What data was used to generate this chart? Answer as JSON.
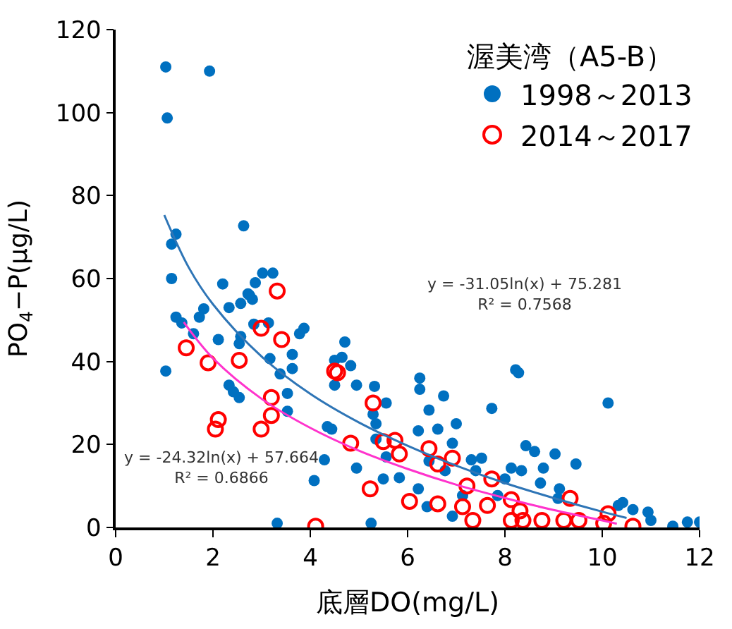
{
  "chart_data": {
    "type": "scatter",
    "legend_title": "渥美湾（A5-B）",
    "xlabel": "底層DO(mg/L)",
    "ylabel": "PO$_{4}$−P(μg/L)",
    "xlim": [
      0,
      12
    ],
    "ylim": [
      0,
      120
    ],
    "xticks": [
      0,
      2,
      4,
      6,
      8,
      10,
      12
    ],
    "yticks": [
      0,
      20,
      40,
      60,
      80,
      100,
      120
    ],
    "legend": "top right",
    "marker": "circle",
    "series": [
      {
        "name": "1998～2013",
        "color": "#0070c0",
        "x": [
          1.03,
          1.93,
          1.06,
          2.63,
          1.24,
          1.15,
          1.15,
          2.2,
          2.87,
          3.02,
          3.23,
          2.72,
          2.75,
          2.81,
          2.57,
          2.33,
          1.81,
          1.72,
          1.24,
          1.36,
          1.6,
          2.11,
          2.57,
          2.54,
          2.84,
          3.14,
          3.78,
          3.87,
          3.63,
          3.17,
          3.63,
          3.38,
          1.03,
          2.33,
          2.42,
          2.54,
          3.53,
          3.53,
          4.35,
          4.44,
          4.29,
          4.08,
          3.32,
          4.5,
          4.5,
          4.71,
          4.65,
          4.83,
          4.95,
          5.32,
          5.56,
          5.29,
          5.35,
          5.35,
          5.56,
          4.95,
          5.5,
          5.83,
          5.25,
          6.25,
          6.25,
          6.74,
          6.44,
          7.0,
          6.22,
          6.62,
          6.92,
          7.73,
          6.44,
          6.77,
          7.31,
          7.52,
          7.4,
          8.0,
          8.13,
          8.34,
          8.22,
          6.22,
          6.4,
          6.92,
          7.85,
          7.13,
          8.28,
          10.12,
          8.43,
          8.61,
          9.03,
          9.46,
          8.79,
          8.73,
          9.12,
          9.09,
          10.33,
          10.42,
          10.63,
          10.94,
          11.45,
          11.75,
          12.0,
          11.0
        ],
        "values": [
          111,
          110,
          98.7,
          72.7,
          70.7,
          68.3,
          60,
          58.7,
          59,
          61.3,
          61.3,
          56.3,
          56,
          55,
          54,
          53,
          52.7,
          50.7,
          50.7,
          49.3,
          46.7,
          45.3,
          46,
          44.3,
          49,
          49.3,
          46.7,
          48,
          41.7,
          40.7,
          38.3,
          37,
          37.7,
          34.3,
          32.7,
          31.3,
          32.3,
          28,
          24.3,
          23.7,
          16.3,
          11.3,
          1,
          34.3,
          40.3,
          44.7,
          41,
          39,
          34.3,
          34,
          30,
          27.3,
          25,
          21.3,
          17,
          14.3,
          11.7,
          12,
          1,
          36,
          33.3,
          31.7,
          28.3,
          25,
          23.3,
          23.7,
          20.3,
          28.7,
          16,
          13.7,
          16.3,
          16.7,
          13.7,
          11.7,
          14.3,
          13.7,
          38,
          9.3,
          5,
          2.7,
          7.7,
          7.7,
          37.3,
          30,
          19.7,
          18.3,
          17.7,
          15.3,
          14.3,
          10.7,
          9.3,
          7,
          5.3,
          6,
          4.3,
          3.7,
          0.3,
          1.3,
          1.3,
          1.7
        ]
      },
      {
        "name": "2014～2017",
        "color": "#ff0000",
        "x": [
          3.32,
          2.99,
          3.41,
          1.45,
          1.9,
          2.54,
          3.2,
          3.2,
          2.99,
          2.11,
          2.05,
          4.11,
          4.5,
          4.56,
          5.29,
          4.83,
          5.5,
          5.74,
          5.83,
          6.44,
          6.62,
          6.92,
          5.23,
          6.04,
          6.62,
          7.22,
          7.13,
          7.34,
          7.73,
          7.64,
          8.13,
          8.13,
          9.34,
          10.12,
          10.63,
          8.76,
          9.21,
          9.52,
          10.03,
          8.31,
          8.37
        ],
        "values": [
          57,
          48,
          45.3,
          43.3,
          39.7,
          40.3,
          31.3,
          27,
          23.7,
          26,
          23.7,
          0.3,
          37.7,
          37.3,
          30,
          20.3,
          20.7,
          21,
          17.7,
          19,
          15.3,
          16.7,
          9.3,
          6.3,
          5.7,
          10,
          5,
          1.7,
          11.7,
          5.3,
          6.7,
          1.7,
          7,
          3.3,
          0.3,
          1.7,
          1.7,
          1.7,
          1,
          4,
          1.7
        ]
      },
      {
        "color": "#2e75b6",
        "type": "line",
        "marker": "none",
        "x": [
          1,
          1.5,
          2,
          3,
          4,
          5,
          6,
          7,
          8,
          9,
          10,
          10.5
        ],
        "values": [
          75.3,
          62.7,
          53.8,
          41.2,
          32.2,
          25.3,
          19.7,
          14.9,
          10.7,
          7.1,
          3.8,
          2.3
        ]
      },
      {
        "color": "#ff33cc",
        "type": "line",
        "marker": "none",
        "x": [
          1.4,
          2,
          3,
          4,
          5,
          6,
          7,
          8,
          9,
          10,
          10.3
        ],
        "values": [
          49.5,
          40.8,
          31.0,
          24.0,
          18.5,
          14.1,
          10.3,
          7.1,
          4.2,
          1.7,
          0.9
        ]
      }
    ],
    "annotations": [
      "y = -31.05ln(x) + 75.281\nR² = 0.7568",
      "y = -24.32ln(x) + 57.664\nR² = 0.6866"
    ]
  }
}
